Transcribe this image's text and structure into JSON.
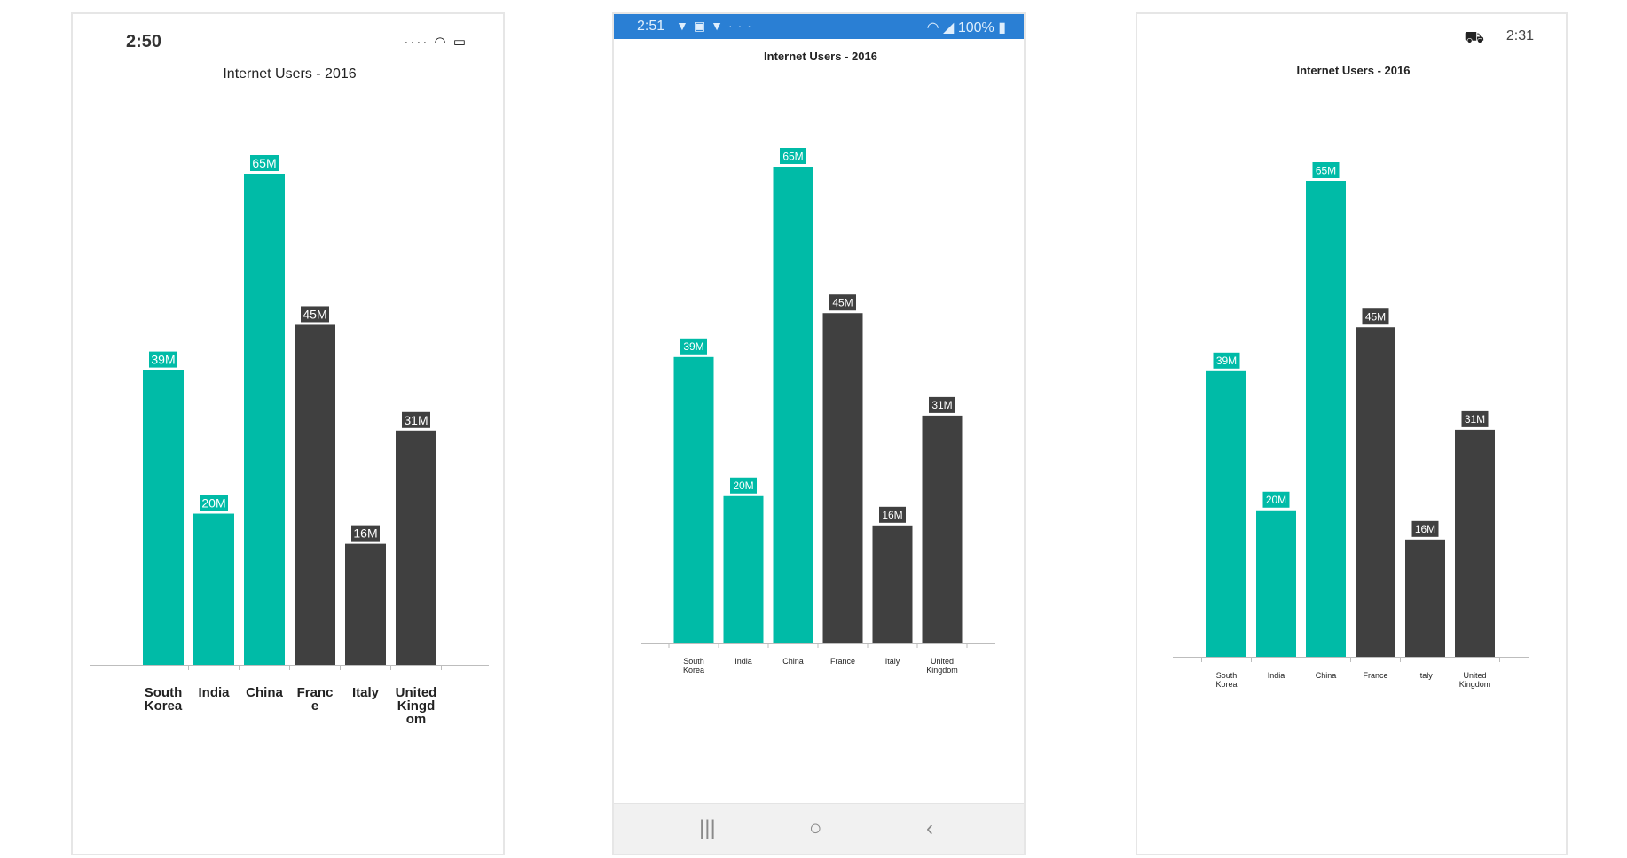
{
  "chart_data": [
    {
      "type": "bar",
      "title": "Internet Users - 2016",
      "categories": [
        "South Korea",
        "India",
        "China",
        "France",
        "Italy",
        "United Kingdom"
      ],
      "values": [
        39,
        20,
        65,
        45,
        16,
        31
      ],
      "data_labels": [
        "39M",
        "20M",
        "65M",
        "45M",
        "16M",
        "31M"
      ],
      "bar_colors": [
        "#00BBA7",
        "#00BBA7",
        "#00BBA7",
        "#404040",
        "#404040",
        "#404040"
      ],
      "ylim": [
        0,
        70
      ],
      "grid": false
    },
    {
      "type": "bar",
      "title": "Internet Users - 2016",
      "categories": [
        "South Korea",
        "India",
        "China",
        "France",
        "Italy",
        "United Kingdom"
      ],
      "values": [
        39,
        20,
        65,
        45,
        16,
        31
      ],
      "data_labels": [
        "39M",
        "20M",
        "65M",
        "45M",
        "16M",
        "31M"
      ],
      "bar_colors": [
        "#00BBA7",
        "#00BBA7",
        "#00BBA7",
        "#404040",
        "#404040",
        "#404040"
      ],
      "ylim": [
        0,
        70
      ],
      "grid": false
    },
    {
      "type": "bar",
      "title": "Internet Users - 2016",
      "categories": [
        "South Korea",
        "India",
        "China",
        "France",
        "Italy",
        "United Kingdom"
      ],
      "values": [
        39,
        20,
        65,
        45,
        16,
        31
      ],
      "data_labels": [
        "39M",
        "20M",
        "65M",
        "45M",
        "16M",
        "31M"
      ],
      "bar_colors": [
        "#00BBA7",
        "#00BBA7",
        "#00BBA7",
        "#404040",
        "#404040",
        "#404040"
      ],
      "ylim": [
        0,
        70
      ],
      "grid": false
    }
  ],
  "devices": {
    "ios": {
      "time": "2:50"
    },
    "android": {
      "time": "2:51",
      "battery": "100%"
    },
    "uwp": {
      "time": "2:31"
    }
  },
  "icons": {
    "ios_status": [
      "signal-dots-icon",
      "wifi-icon",
      "battery-icon"
    ],
    "android_status": [
      "notification-icon",
      "image-icon",
      "notification-icon",
      "more-icon",
      "wifi-icon",
      "signal-icon",
      "battery-icon"
    ],
    "android_nav": [
      "recents-icon",
      "home-icon",
      "back-icon"
    ],
    "uwp_status": [
      "glyph-icon"
    ]
  },
  "colors": {
    "teal": "#00BBA7",
    "dark": "#404040",
    "android_bar": "#2a7fd4"
  }
}
